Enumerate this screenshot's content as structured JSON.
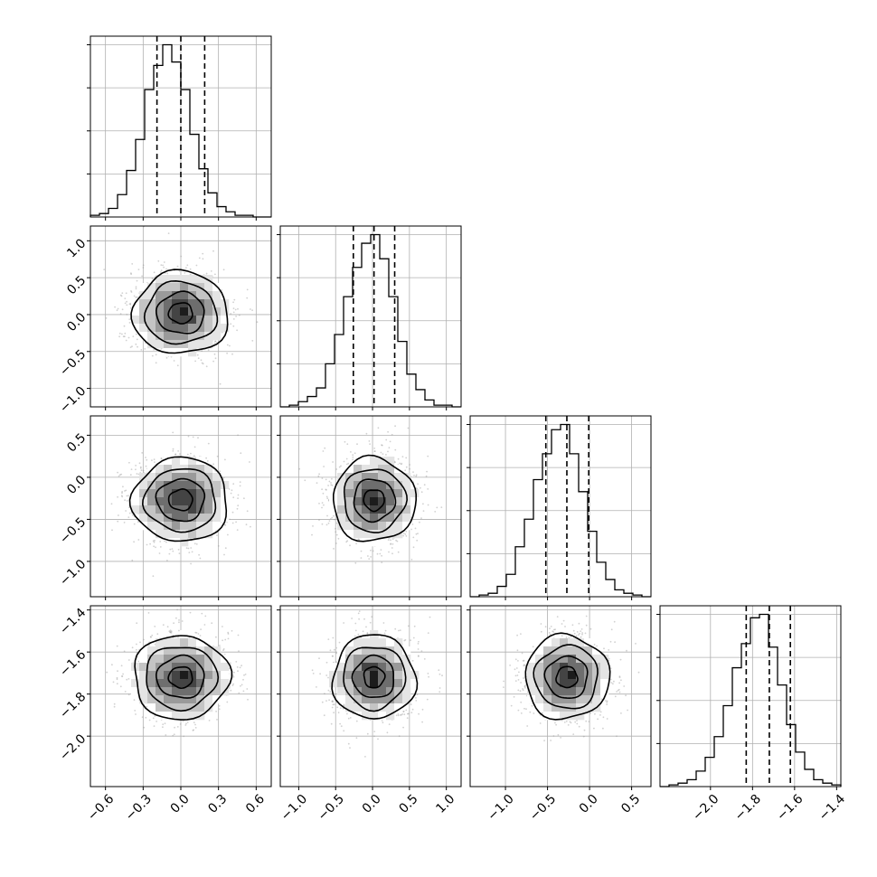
{
  "chart_data": {
    "type": "corner",
    "parameters": [
      {
        "index": 0,
        "center": 0.0,
        "sigma": 0.19,
        "range": [
          -0.72,
          0.72
        ],
        "ticks": [
          -0.6,
          -0.3,
          0.0,
          0.3,
          0.6
        ],
        "tick_labels": [
          "−0.6",
          "−0.3",
          "0.0",
          "0.3",
          "0.6"
        ],
        "quantiles": [
          -0.19,
          0.0,
          0.19
        ]
      },
      {
        "index": 1,
        "center": 0.02,
        "sigma": 0.28,
        "range": [
          -1.25,
          1.2
        ],
        "ticks": [
          -1.0,
          -0.5,
          0.0,
          0.5,
          1.0
        ],
        "tick_labels": [
          "−1.0",
          "−0.5",
          "0.0",
          "0.5",
          "1.0"
        ],
        "quantiles": [
          -0.26,
          0.02,
          0.3
        ]
      },
      {
        "index": 2,
        "center": -0.27,
        "sigma": 0.25,
        "range": [
          -1.42,
          0.73
        ],
        "ticks": [
          -1.0,
          -0.5,
          0.0,
          0.5
        ],
        "tick_labels": [
          "−1.0",
          "−0.5",
          "0.0",
          "0.5"
        ],
        "quantiles": [
          -0.52,
          -0.27,
          -0.01
        ]
      },
      {
        "index": 3,
        "center": -1.72,
        "sigma": 0.1,
        "range": [
          -2.24,
          -1.38
        ],
        "ticks": [
          -2.0,
          -1.8,
          -1.6,
          -1.4
        ],
        "tick_labels": [
          "−2.0",
          "−1.8",
          "−1.6",
          "−1.4"
        ],
        "quantiles": [
          -1.83,
          -1.72,
          -1.62
        ]
      }
    ],
    "histograms": [
      {
        "param": 0,
        "bin_edges": [
          -0.72,
          0.72
        ],
        "bins": 20,
        "counts": [
          1,
          2,
          5,
          13,
          27,
          45,
          74,
          88,
          100,
          90,
          74,
          48,
          28,
          14,
          6,
          3,
          1,
          1,
          0,
          0
        ],
        "ylim": [
          0,
          105
        ]
      },
      {
        "param": 1,
        "bin_edges": [
          -1.25,
          1.2
        ],
        "bins": 20,
        "counts": [
          0,
          1,
          3,
          6,
          11,
          25,
          42,
          64,
          81,
          95,
          100,
          86,
          64,
          38,
          19,
          10,
          4,
          1,
          1,
          0
        ],
        "ylim": [
          0,
          105
        ]
      },
      {
        "param": 2,
        "bin_edges": [
          -1.42,
          0.73
        ],
        "bins": 20,
        "counts": [
          0,
          1,
          2,
          6,
          13,
          29,
          45,
          68,
          83,
          97,
          100,
          83,
          61,
          38,
          20,
          10,
          4,
          2,
          1,
          0
        ],
        "ylim": [
          0,
          105
        ]
      },
      {
        "param": 3,
        "bin_edges": [
          -2.24,
          -1.38
        ],
        "bins": 20,
        "counts": [
          0,
          1,
          2,
          4,
          9,
          17,
          29,
          47,
          69,
          83,
          98,
          100,
          81,
          59,
          36,
          20,
          10,
          4,
          2,
          1
        ],
        "ylim": [
          0,
          105
        ]
      }
    ],
    "grid": true,
    "contour_levels_sigma": [
      0.5,
      1.0,
      1.5,
      2.0
    ],
    "scatter": "gray points outside contours"
  }
}
